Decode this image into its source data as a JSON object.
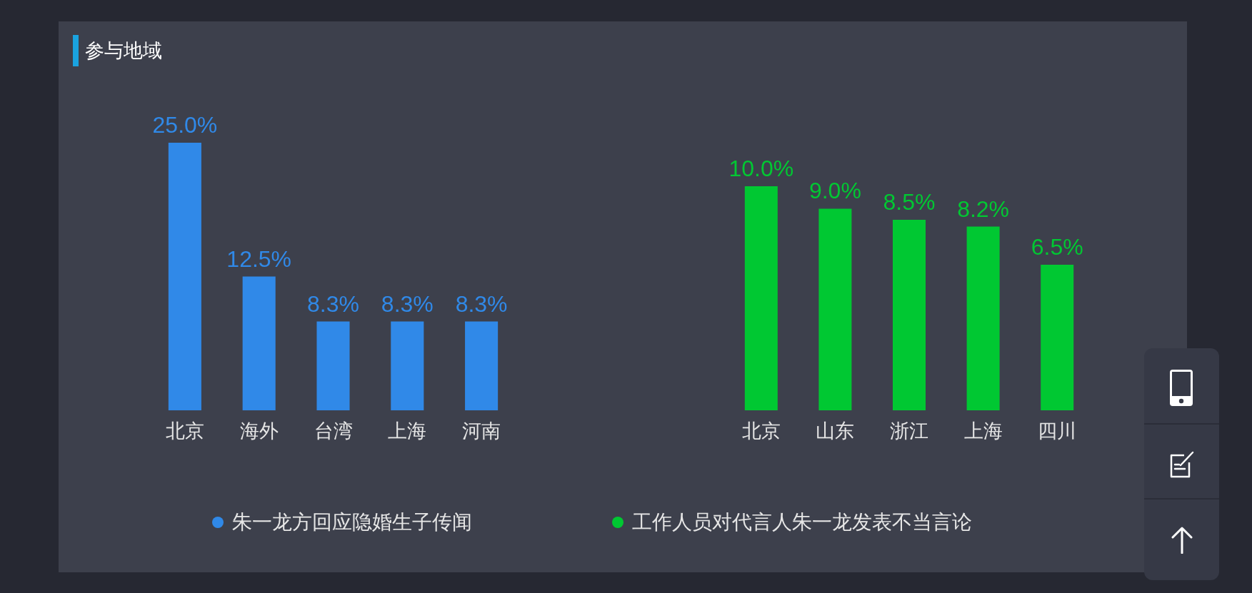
{
  "chart_data": [
    {
      "type": "bar",
      "title": "参与地域",
      "categories": [
        "北京",
        "海外",
        "台湾",
        "上海",
        "河南"
      ],
      "series": [
        {
          "name": "朱一龙方回应隐婚生子传闻",
          "color": "#3089e8",
          "values": [
            25.0,
            12.5,
            8.3,
            8.3,
            8.3
          ],
          "value_labels": [
            "25.0%",
            "12.5%",
            "8.3%",
            "8.3%",
            "8.3%"
          ]
        }
      ],
      "tick_labels": "x",
      "legend": "bottom"
    },
    {
      "type": "bar",
      "categories": [
        "北京",
        "山东",
        "浙江",
        "上海",
        "四川"
      ],
      "series": [
        {
          "name": "工作人员对代言人朱一龙发表不当言论",
          "color": "#00c832",
          "values": [
            10.0,
            9.0,
            8.5,
            8.2,
            6.5
          ],
          "value_labels": [
            "10.0%",
            "9.0%",
            "8.5%",
            "8.2%",
            "6.5%"
          ]
        }
      ],
      "tick_labels": "x",
      "legend": "bottom"
    }
  ]
}
